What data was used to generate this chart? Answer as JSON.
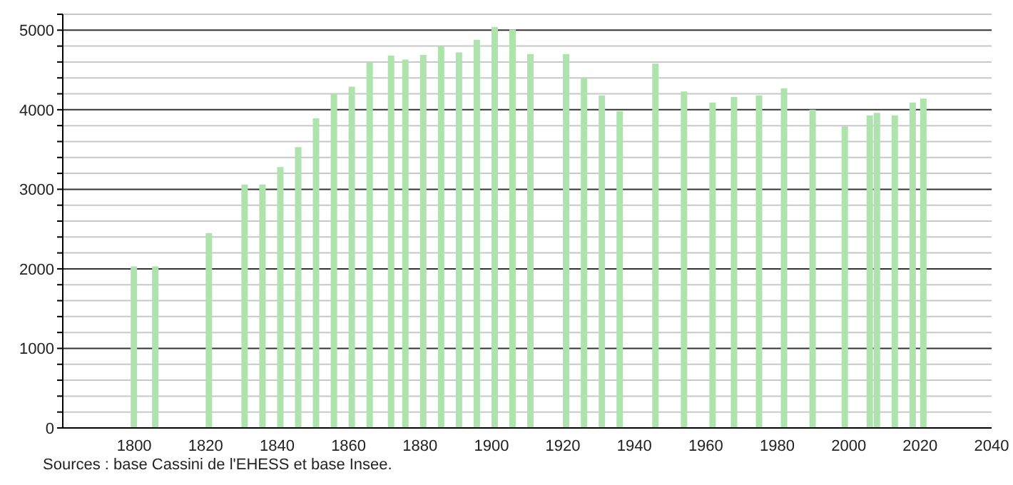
{
  "chart_data": {
    "type": "bar",
    "x": [
      1800,
      1806,
      1821,
      1831,
      1836,
      1841,
      1846,
      1851,
      1856,
      1861,
      1866,
      1872,
      1876,
      1881,
      1886,
      1891,
      1896,
      1901,
      1906,
      1911,
      1921,
      1926,
      1931,
      1936,
      1946,
      1954,
      1962,
      1968,
      1975,
      1982,
      1990,
      1999,
      2006,
      2008,
      2013,
      2018,
      2021
    ],
    "values": [
      2030,
      2030,
      2450,
      3060,
      3060,
      3280,
      3530,
      3890,
      4200,
      4290,
      4600,
      4680,
      4630,
      4690,
      4800,
      4720,
      4880,
      5040,
      5010,
      4700,
      4700,
      4400,
      4180,
      3980,
      4580,
      4230,
      4090,
      4160,
      4180,
      4270,
      4000,
      3790,
      3930,
      3960,
      3930,
      4090,
      4140
    ],
    "color": "#aee3ae",
    "xlim": [
      1780,
      2040
    ],
    "xticks": [
      1800,
      1820,
      1840,
      1860,
      1880,
      1900,
      1920,
      1940,
      1960,
      1980,
      2000,
      2020,
      2040
    ],
    "ylim": [
      0,
      5200
    ],
    "yticks": [
      0,
      {
        "value": 200,
        "label": null
      },
      {
        "value": 400,
        "label": null
      },
      {
        "value": 600,
        "label": null
      },
      {
        "value": 800,
        "label": null
      },
      1000,
      {
        "value": 1200,
        "label": null
      },
      {
        "value": 1400,
        "label": null
      },
      {
        "value": 1600,
        "label": null
      },
      {
        "value": 1800,
        "label": null
      },
      2000,
      {
        "value": 2200,
        "label": null
      },
      {
        "value": 2400,
        "label": null
      },
      {
        "value": 2600,
        "label": null
      },
      {
        "value": 2800,
        "label": null
      },
      3000,
      {
        "value": 3200,
        "label": null
      },
      {
        "value": 3400,
        "label": null
      },
      {
        "value": 3600,
        "label": null
      },
      {
        "value": 3800,
        "label": null
      },
      4000,
      {
        "value": 4200,
        "label": null
      },
      {
        "value": 4400,
        "label": null
      },
      {
        "value": 4600,
        "label": null
      },
      {
        "value": 4800,
        "label": null
      },
      5000,
      {
        "value": 5200,
        "label": null
      }
    ],
    "grid": "y",
    "annotations": [
      "Sources : base Cassini de l'EHESS et base Insee."
    ]
  }
}
